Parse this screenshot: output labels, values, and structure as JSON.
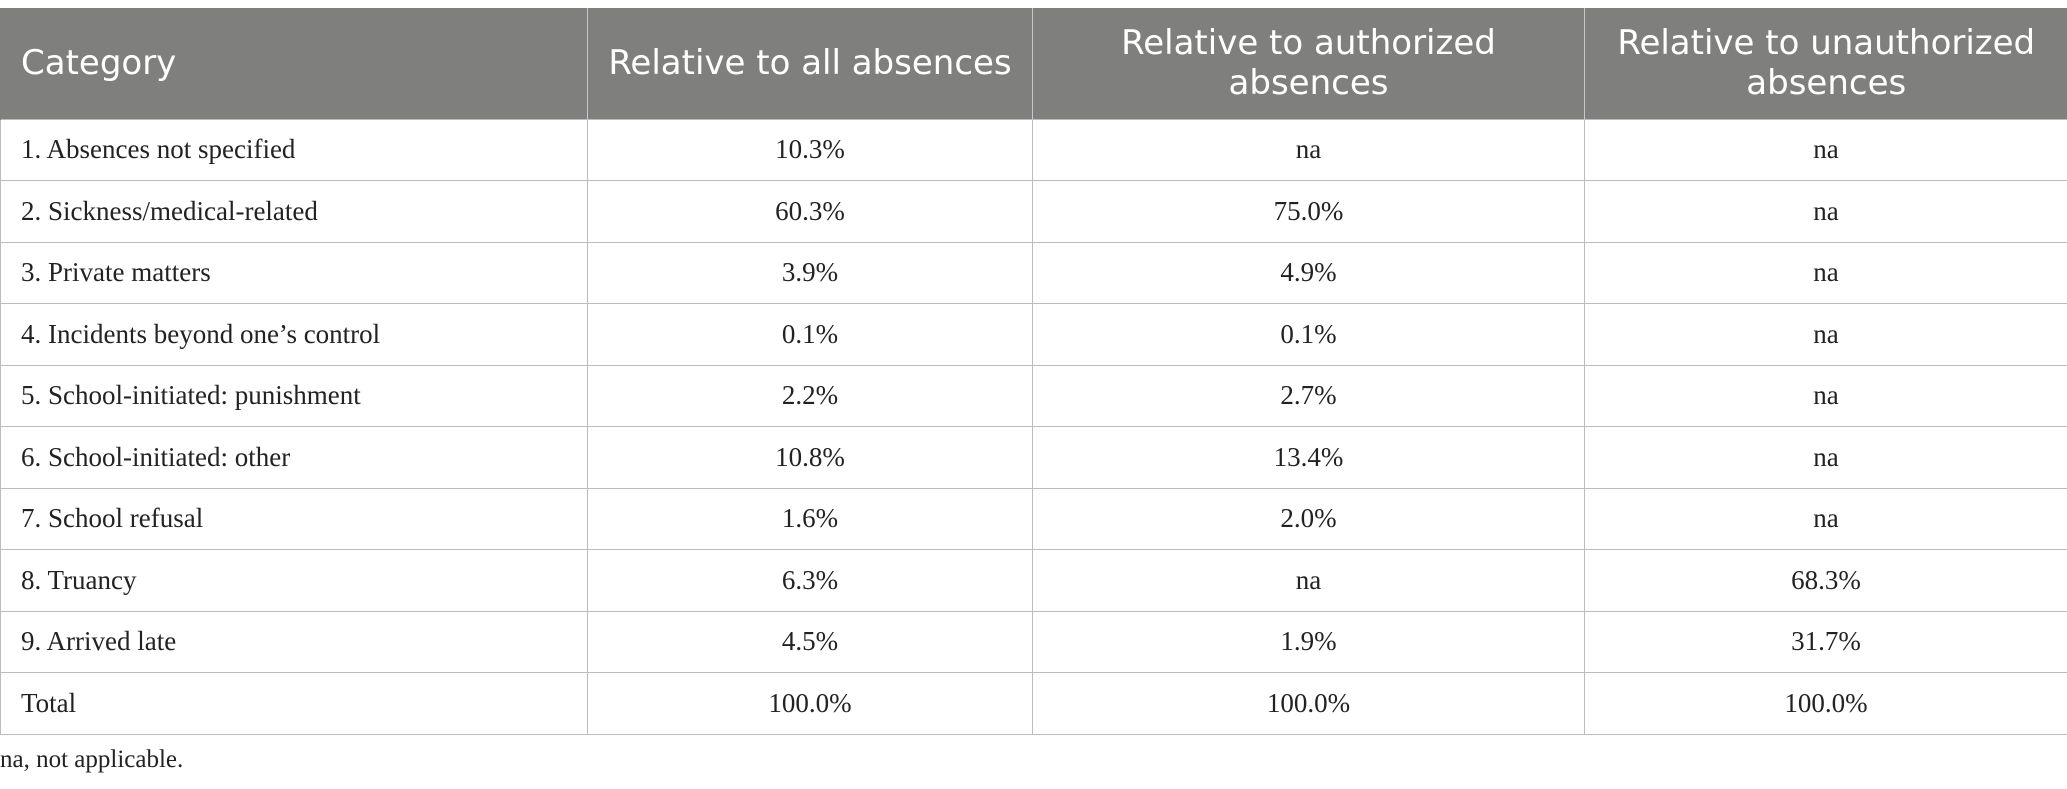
{
  "table": {
    "headers": [
      "Category",
      "Relative to all absences",
      "Relative to authorized absences",
      "Relative to unauthorized absences"
    ],
    "rows": [
      [
        "1. Absences not specified",
        "10.3%",
        "na",
        "na"
      ],
      [
        "2. Sickness/medical-related",
        "60.3%",
        "75.0%",
        "na"
      ],
      [
        "3. Private matters",
        "3.9%",
        "4.9%",
        "na"
      ],
      [
        "4. Incidents beyond one’s control",
        "0.1%",
        "0.1%",
        "na"
      ],
      [
        "5. School-initiated: punishment",
        "2.2%",
        "2.7%",
        "na"
      ],
      [
        "6. School-initiated: other",
        "10.8%",
        "13.4%",
        "na"
      ],
      [
        "7. School refusal",
        "1.6%",
        "2.0%",
        "na"
      ],
      [
        "8. Truancy",
        "6.3%",
        "na",
        "68.3%"
      ],
      [
        "9. Arrived late",
        "4.5%",
        "1.9%",
        "31.7%"
      ],
      [
        "Total",
        "100.0%",
        "100.0%",
        "100.0%"
      ]
    ]
  },
  "footnote": "na, not applicable.",
  "colors": {
    "header_bg": "#7f807e",
    "header_text": "#ffffff",
    "grid": "#bcbcbc"
  }
}
